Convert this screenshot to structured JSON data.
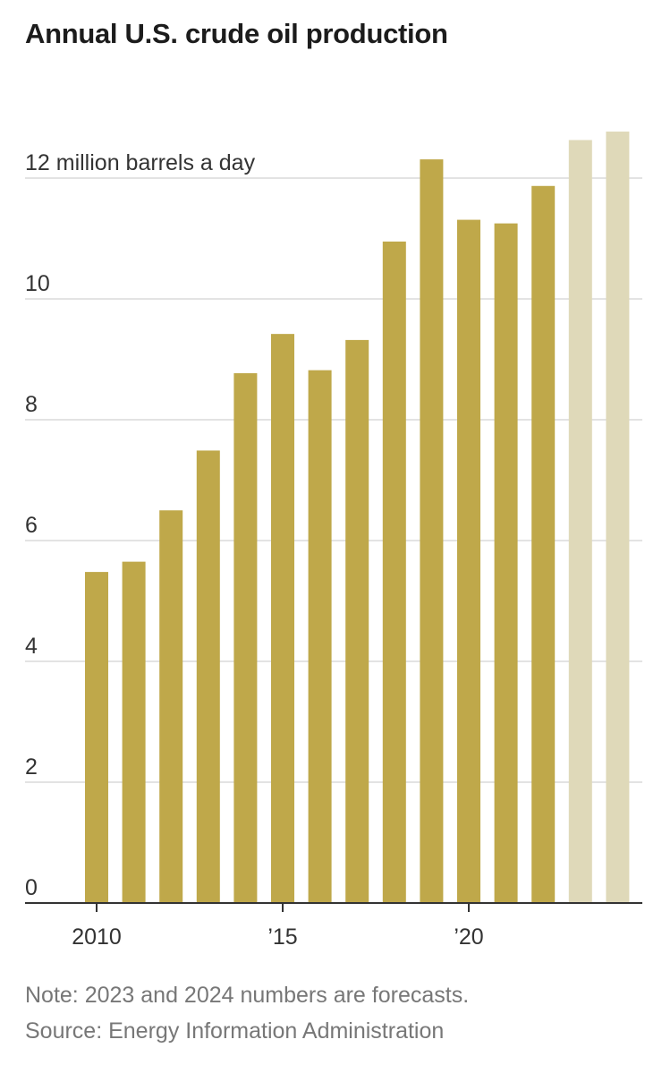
{
  "title": "Annual U.S. crude oil production",
  "note": "Note: 2023 and 2024 numbers are forecasts.",
  "source": "Source: Energy Information Administration",
  "colors": {
    "actual": "#bfa84a",
    "forecast": "#dfd9b9",
    "grid": "#e3e3e3",
    "axis": "#333333",
    "label": "#333333"
  },
  "chart_data": {
    "type": "bar",
    "unit_label": "12 million barrels a day",
    "years": [
      2010,
      2011,
      2012,
      2013,
      2014,
      2015,
      2016,
      2017,
      2018,
      2019,
      2020,
      2021,
      2022,
      2023,
      2024
    ],
    "values": [
      5.48,
      5.65,
      6.5,
      7.49,
      8.77,
      9.42,
      8.82,
      9.32,
      10.95,
      12.31,
      11.31,
      11.25,
      11.87,
      12.63,
      12.77
    ],
    "forecast": [
      false,
      false,
      false,
      false,
      false,
      false,
      false,
      false,
      false,
      false,
      false,
      false,
      false,
      true,
      true
    ],
    "ylim": [
      0,
      13
    ],
    "yticks": [
      0,
      2,
      4,
      6,
      8,
      10,
      12
    ],
    "ytick_labels": [
      "0",
      "2",
      "4",
      "6",
      "8",
      "10",
      "12 million barrels a day"
    ],
    "xticks": [
      2010,
      2015,
      2020
    ],
    "xtick_labels": [
      "2010",
      "’15",
      "’20"
    ],
    "grid": true
  }
}
